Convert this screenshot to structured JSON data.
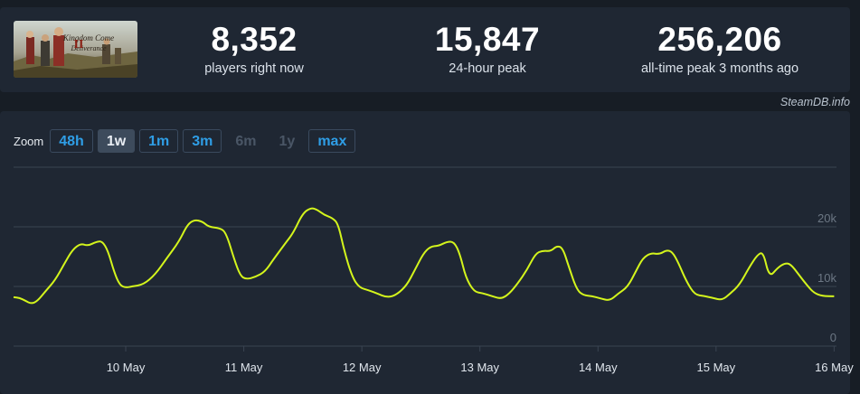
{
  "game": {
    "image_alt": "Kingdom Come Deliverance II"
  },
  "stats": [
    {
      "value": "8,352",
      "label": "players right now"
    },
    {
      "value": "15,847",
      "label": "24-hour peak"
    },
    {
      "value": "256,206",
      "label": "all-time peak 3 months ago"
    }
  ],
  "credit": "SteamDB.info",
  "zoom": {
    "label": "Zoom",
    "options": [
      {
        "label": "48h",
        "state": "enabled"
      },
      {
        "label": "1w",
        "state": "active"
      },
      {
        "label": "1m",
        "state": "enabled"
      },
      {
        "label": "3m",
        "state": "enabled"
      },
      {
        "label": "6m",
        "state": "disabled"
      },
      {
        "label": "1y",
        "state": "disabled"
      },
      {
        "label": "max",
        "state": "enabled"
      }
    ]
  },
  "colors": {
    "line": "#d4f51c",
    "background": "#171d25",
    "panel": "#1f2733",
    "link": "#2f9ee6"
  },
  "chart_data": {
    "type": "line",
    "title": "",
    "xlabel": "",
    "ylabel": "",
    "ylim": [
      0,
      30000
    ],
    "yticks": [
      {
        "value": 0,
        "label": "0"
      },
      {
        "value": 10000,
        "label": "10k"
      },
      {
        "value": 20000,
        "label": "20k"
      }
    ],
    "xlim": [
      -0.95,
      6.02
    ],
    "xticks": [
      {
        "value": 0,
        "label": "10 May"
      },
      {
        "value": 1,
        "label": "11 May"
      },
      {
        "value": 2,
        "label": "12 May"
      },
      {
        "value": 3,
        "label": "13 May"
      },
      {
        "value": 4,
        "label": "14 May"
      },
      {
        "value": 5,
        "label": "15 May"
      },
      {
        "value": 6,
        "label": "16 May"
      }
    ],
    "grid": true,
    "series": [
      {
        "values": [
          [
            -0.95,
            8200
          ],
          [
            -0.9,
            8100
          ],
          [
            -0.85,
            7600
          ],
          [
            -0.8,
            7100
          ],
          [
            -0.75,
            7500
          ],
          [
            -0.68,
            9200
          ],
          [
            -0.6,
            11000
          ],
          [
            -0.52,
            13800
          ],
          [
            -0.45,
            16200
          ],
          [
            -0.38,
            17200
          ],
          [
            -0.32,
            16800
          ],
          [
            -0.25,
            17500
          ],
          [
            -0.2,
            17600
          ],
          [
            -0.15,
            16000
          ],
          [
            -0.1,
            12500
          ],
          [
            -0.05,
            10200
          ],
          [
            0.0,
            9800
          ],
          [
            0.05,
            10000
          ],
          [
            0.15,
            10300
          ],
          [
            0.25,
            12000
          ],
          [
            0.35,
            14800
          ],
          [
            0.45,
            17500
          ],
          [
            0.52,
            20300
          ],
          [
            0.58,
            21200
          ],
          [
            0.65,
            20900
          ],
          [
            0.7,
            20000
          ],
          [
            0.8,
            19800
          ],
          [
            0.85,
            19000
          ],
          [
            0.92,
            14500
          ],
          [
            0.97,
            11800
          ],
          [
            1.02,
            11200
          ],
          [
            1.1,
            11600
          ],
          [
            1.18,
            12500
          ],
          [
            1.25,
            14500
          ],
          [
            1.35,
            17200
          ],
          [
            1.42,
            19000
          ],
          [
            1.5,
            22300
          ],
          [
            1.57,
            23200
          ],
          [
            1.62,
            22900
          ],
          [
            1.68,
            22000
          ],
          [
            1.75,
            21500
          ],
          [
            1.8,
            20500
          ],
          [
            1.85,
            16000
          ],
          [
            1.92,
            11500
          ],
          [
            1.98,
            9800
          ],
          [
            2.05,
            9400
          ],
          [
            2.12,
            8900
          ],
          [
            2.22,
            8100
          ],
          [
            2.3,
            8700
          ],
          [
            2.38,
            10200
          ],
          [
            2.45,
            12800
          ],
          [
            2.52,
            15500
          ],
          [
            2.58,
            16700
          ],
          [
            2.65,
            16800
          ],
          [
            2.72,
            17500
          ],
          [
            2.78,
            17500
          ],
          [
            2.83,
            15500
          ],
          [
            2.88,
            11500
          ],
          [
            2.95,
            9100
          ],
          [
            3.02,
            8900
          ],
          [
            3.1,
            8400
          ],
          [
            3.18,
            7900
          ],
          [
            3.25,
            8800
          ],
          [
            3.32,
            10500
          ],
          [
            3.4,
            12800
          ],
          [
            3.47,
            15500
          ],
          [
            3.53,
            16000
          ],
          [
            3.6,
            15900
          ],
          [
            3.65,
            16800
          ],
          [
            3.7,
            16500
          ],
          [
            3.75,
            13500
          ],
          [
            3.82,
            9400
          ],
          [
            3.88,
            8500
          ],
          [
            3.95,
            8400
          ],
          [
            4.02,
            8000
          ],
          [
            4.1,
            7600
          ],
          [
            4.17,
            8800
          ],
          [
            4.25,
            9900
          ],
          [
            4.32,
            12500
          ],
          [
            4.38,
            14800
          ],
          [
            4.45,
            15600
          ],
          [
            4.52,
            15400
          ],
          [
            4.58,
            16100
          ],
          [
            4.63,
            15800
          ],
          [
            4.68,
            14000
          ],
          [
            4.75,
            10800
          ],
          [
            4.82,
            8600
          ],
          [
            4.9,
            8400
          ],
          [
            4.97,
            8100
          ],
          [
            5.05,
            7700
          ],
          [
            5.12,
            8800
          ],
          [
            5.2,
            10300
          ],
          [
            5.28,
            13200
          ],
          [
            5.35,
            15300
          ],
          [
            5.4,
            15800
          ],
          [
            5.45,
            11500
          ],
          [
            5.52,
            13100
          ],
          [
            5.58,
            13900
          ],
          [
            5.63,
            13800
          ],
          [
            5.7,
            12000
          ],
          [
            5.77,
            10200
          ],
          [
            5.83,
            8900
          ],
          [
            5.9,
            8400
          ],
          [
            6.0,
            8350
          ]
        ]
      }
    ]
  }
}
